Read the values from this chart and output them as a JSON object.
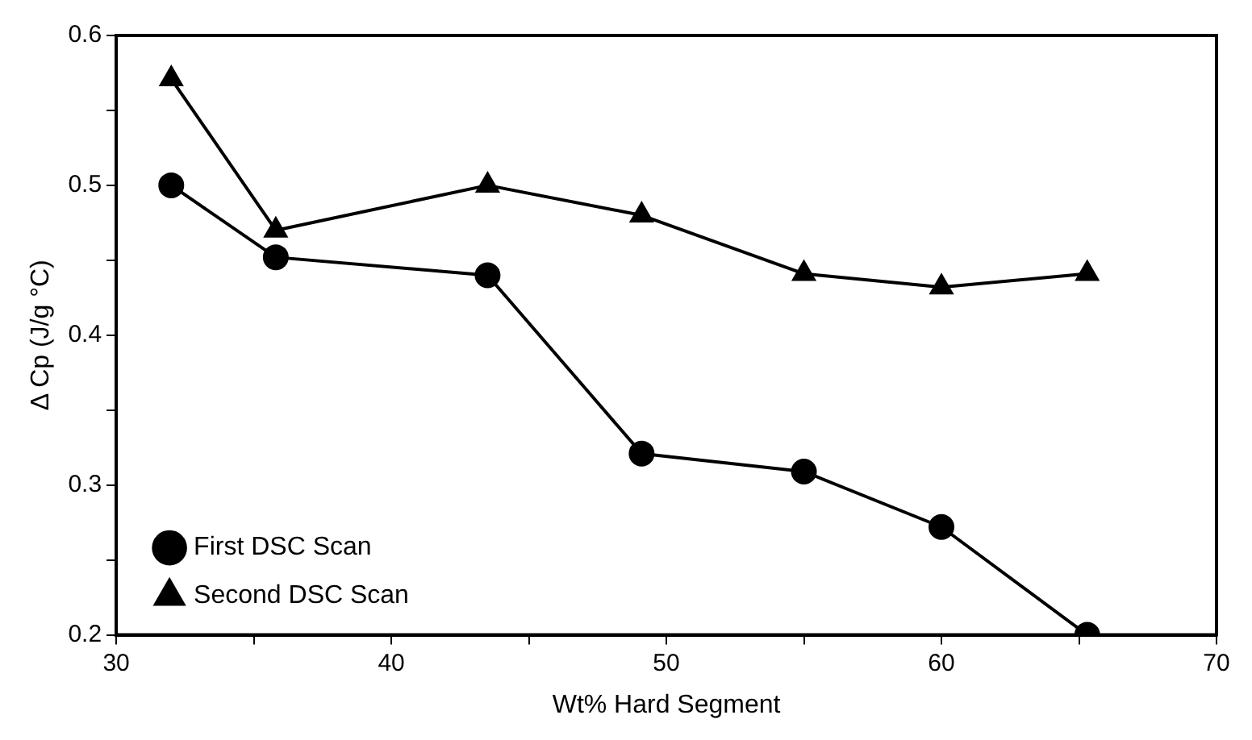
{
  "chart_data": {
    "type": "line",
    "xlabel": "Wt% Hard Segment",
    "ylabel": "Δ Cp (J/g °C)",
    "xlim": [
      30,
      70
    ],
    "ylim": [
      0.2,
      0.6
    ],
    "xticks": [
      30,
      {
        "value": 35,
        "label": null
      },
      40,
      {
        "value": 45,
        "label": null
      },
      50,
      {
        "value": 55,
        "label": null
      },
      60,
      {
        "value": 65,
        "label": null
      },
      70
    ],
    "yticks": [
      0.2,
      {
        "value": 0.25,
        "label": null
      },
      0.3,
      {
        "value": 0.35,
        "label": null
      },
      0.4,
      {
        "value": 0.45,
        "label": null
      },
      0.5,
      {
        "value": 0.55,
        "label": null
      },
      0.6
    ],
    "grid": false,
    "legend": "bottom left",
    "line_style": "solid",
    "series": [
      {
        "name": "First DSC Scan",
        "color": "#000000",
        "marker": "circle",
        "x": [
          32,
          35.8,
          43.5,
          49.1,
          55,
          60,
          65.3
        ],
        "values": [
          0.5,
          0.452,
          0.44,
          0.321,
          0.309,
          0.272,
          0.2
        ]
      },
      {
        "name": "Second DSC Scan",
        "color": "#000000",
        "marker": "triangle",
        "x": [
          32,
          35.8,
          43.5,
          49.1,
          55,
          60,
          65.3
        ],
        "values": [
          0.571,
          0.47,
          0.5,
          0.48,
          0.441,
          0.432,
          0.441
        ]
      }
    ]
  }
}
